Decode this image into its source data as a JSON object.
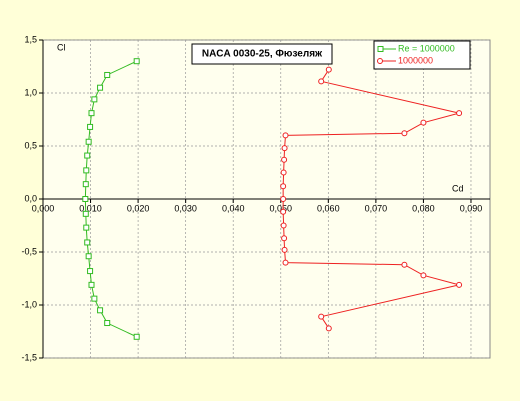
{
  "chart_data": {
    "type": "line",
    "title": "NACA 0030-25, Фюзеляж",
    "xlabel": "Cd",
    "ylabel": "Cl",
    "xlim": [
      0,
      0.094
    ],
    "ylim": [
      -1.5,
      1.5
    ],
    "xticks": [
      {
        "value": 0,
        "label": "0,000"
      },
      {
        "value": 0.01,
        "label": "0,010"
      },
      {
        "value": 0.02,
        "label": "0,020"
      },
      {
        "value": 0.03,
        "label": "0,030"
      },
      {
        "value": 0.04,
        "label": "0,040"
      },
      {
        "value": 0.05,
        "label": "0,050"
      },
      {
        "value": 0.06,
        "label": "0,060"
      },
      {
        "value": 0.07,
        "label": "0,070"
      },
      {
        "value": 0.08,
        "label": "0,080"
      },
      {
        "value": 0.09,
        "label": "0,090"
      }
    ],
    "yticks": [
      {
        "value": -1.5,
        "label": "-1,5"
      },
      {
        "value": -1,
        "label": "-1,0"
      },
      {
        "value": -0.5,
        "label": "-0,5"
      },
      {
        "value": 0,
        "label": "0,0"
      },
      {
        "value": 0.5,
        "label": "0,5"
      },
      {
        "value": 1,
        "label": "1,0"
      },
      {
        "value": 1.5,
        "label": "1,5"
      }
    ],
    "grid": true,
    "legend": "upper right",
    "series": [
      {
        "name": "Re = 1000000",
        "color": "#33bb22",
        "marker": "square",
        "x": [
          0.0197,
          0.0135,
          0.012,
          0.0108,
          0.0102,
          0.0099,
          0.0096,
          0.0093,
          0.0091,
          0.009,
          0.0089,
          0.009,
          0.0091,
          0.0093,
          0.0096,
          0.0099,
          0.0102,
          0.0108,
          0.012,
          0.0135,
          0.0197
        ],
        "values": [
          1.3,
          1.17,
          1.05,
          0.94,
          0.81,
          0.68,
          0.54,
          0.41,
          0.27,
          0.14,
          0,
          -0.14,
          -0.27,
          -0.41,
          -0.54,
          -0.68,
          -0.81,
          -0.94,
          -1.05,
          -1.17,
          -1.3
        ]
      },
      {
        "name": "1000000",
        "color": "#ee2222",
        "marker": "circle",
        "x": [
          0.0601,
          0.0585,
          0.0875,
          0.08,
          0.076,
          0.051,
          0.0508,
          0.0507,
          0.0506,
          0.0505,
          0.0505,
          0.0505,
          0.0506,
          0.0507,
          0.0508,
          0.051,
          0.076,
          0.08,
          0.0875,
          0.0585,
          0.0601
        ],
        "values": [
          1.22,
          1.11,
          0.81,
          0.72,
          0.62,
          0.6,
          0.48,
          0.37,
          0.25,
          0.12,
          0,
          -0.12,
          -0.25,
          -0.37,
          -0.48,
          -0.6,
          -0.62,
          -0.72,
          -0.81,
          -1.11,
          -1.22
        ]
      }
    ]
  }
}
